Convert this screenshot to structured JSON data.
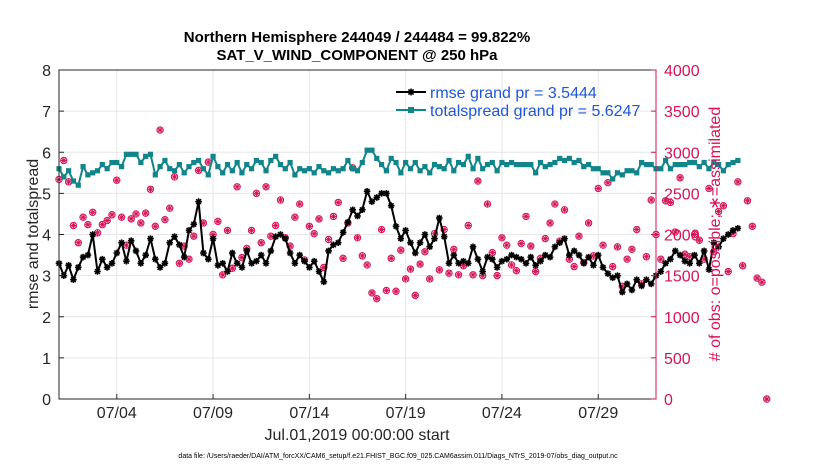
{
  "chart_data": {
    "type": "line",
    "title": "Northern Hemisphere 244049 / 244484 = 99.822%",
    "subtitle": "SAT_V_WIND_COMPONENT @ 250 hPa",
    "xlabel": "Jul.01,2019 00:00:00 start",
    "ylabel": "rmse and totalspread",
    "ylabel_right": "# of obs: o=possible; ∗=assimilated",
    "footer": "data file: /Users/raeder/DAI/ATM_forcXX/CAM6_setup/f.e21.FHIST_BGC.f09_025.CAM6assim.011/Diags_NTrS_2019-07/obs_diag_output.nc",
    "x_range_days": [
      1,
      32
    ],
    "ylim": [
      0,
      8
    ],
    "ylim_right": [
      0,
      4000
    ],
    "x_ticks": [
      {
        "day": 4,
        "label": "07/04"
      },
      {
        "day": 9,
        "label": "07/09"
      },
      {
        "day": 14,
        "label": "07/14"
      },
      {
        "day": 19,
        "label": "07/19"
      },
      {
        "day": 24,
        "label": "07/24"
      },
      {
        "day": 29,
        "label": "07/29"
      }
    ],
    "y_ticks": [
      0,
      1,
      2,
      3,
      4,
      5,
      6,
      7,
      8
    ],
    "y_ticks_right": [
      0,
      500,
      1000,
      1500,
      2000,
      2500,
      3000,
      3500,
      4000
    ],
    "legend_position": "top-right",
    "grid": true,
    "x_start_day": 1.0,
    "x_step_days": 0.25,
    "series": [
      {
        "name": "rmse grand pr = 3.5444",
        "color": "#000000",
        "marker": "star",
        "values": [
          3.3,
          3.0,
          3.25,
          2.9,
          3.2,
          3.45,
          3.5,
          4.0,
          3.1,
          3.4,
          3.2,
          3.3,
          3.55,
          3.8,
          3.35,
          3.85,
          3.6,
          3.3,
          3.5,
          3.9,
          3.4,
          3.2,
          3.3,
          3.8,
          3.95,
          3.75,
          3.45,
          4.1,
          4.25,
          4.8,
          3.55,
          3.4,
          3.9,
          3.25,
          3.3,
          3.1,
          3.55,
          3.3,
          3.2,
          3.6,
          3.3,
          3.35,
          3.5,
          3.3,
          3.6,
          3.95,
          4.0,
          3.9,
          3.55,
          3.3,
          3.5,
          3.35,
          3.2,
          3.35,
          3.1,
          2.85,
          3.6,
          3.75,
          3.8,
          4.05,
          4.3,
          4.6,
          4.45,
          4.6,
          5.05,
          4.8,
          4.9,
          5.0,
          5.0,
          4.7,
          4.2,
          3.9,
          4.1,
          3.8,
          3.55,
          3.8,
          4.0,
          3.7,
          3.9,
          4.4,
          3.95,
          3.3,
          3.5,
          3.3,
          3.35,
          3.3,
          3.7,
          3.4,
          3.1,
          3.45,
          3.4,
          3.2,
          3.35,
          3.4,
          3.5,
          3.45,
          3.4,
          3.3,
          3.45,
          3.25,
          3.35,
          3.5,
          3.45,
          3.7,
          3.8,
          3.9,
          3.5,
          3.6,
          3.5,
          3.3,
          3.45,
          3.25,
          3.5,
          3.2,
          3.05,
          2.95,
          3.0,
          2.6,
          2.8,
          2.65,
          2.9,
          2.75,
          2.9,
          2.8,
          3.0,
          3.1,
          3.3,
          3.4,
          3.6,
          3.5,
          3.35,
          3.3,
          3.5,
          3.3,
          3.6,
          3.15,
          3.8,
          3.7,
          3.9,
          4.0,
          4.1,
          4.15
        ]
      },
      {
        "name": "totalspread grand pr = 5.6247",
        "color": "#11858a",
        "marker": "square",
        "values": [
          5.6,
          5.4,
          5.55,
          5.3,
          5.2,
          5.65,
          5.45,
          5.5,
          5.55,
          5.7,
          5.6,
          5.75,
          5.75,
          5.65,
          5.95,
          5.95,
          5.95,
          5.75,
          5.9,
          5.95,
          5.45,
          5.65,
          5.8,
          5.6,
          5.55,
          5.7,
          5.5,
          5.65,
          5.75,
          5.8,
          5.6,
          5.45,
          5.9,
          5.65,
          5.5,
          5.7,
          5.55,
          5.75,
          5.5,
          5.7,
          5.6,
          5.8,
          5.75,
          5.55,
          5.8,
          5.9,
          5.7,
          5.6,
          5.75,
          5.45,
          5.6,
          5.55,
          5.6,
          5.5,
          5.65,
          5.55,
          5.5,
          5.6,
          5.55,
          5.6,
          5.8,
          5.6,
          5.55,
          5.75,
          6.05,
          6.05,
          5.85,
          5.7,
          5.55,
          5.85,
          5.75,
          5.5,
          5.75,
          5.6,
          5.75,
          5.55,
          5.65,
          5.5,
          5.7,
          5.65,
          5.6,
          5.8,
          5.55,
          5.75,
          5.7,
          5.9,
          5.6,
          5.85,
          5.6,
          5.7,
          5.75,
          5.55,
          5.75,
          5.7,
          5.75,
          5.7,
          5.7,
          5.7,
          5.7,
          5.5,
          5.75,
          5.65,
          5.7,
          5.75,
          5.85,
          5.8,
          5.85,
          5.75,
          5.8,
          5.65,
          5.7,
          5.6,
          5.6,
          5.5,
          5.5,
          5.35,
          5.5,
          5.45,
          5.55,
          5.55,
          5.5,
          5.75,
          5.7,
          5.7,
          5.6,
          5.6,
          5.8,
          5.6,
          5.7,
          5.7,
          5.7,
          5.75,
          5.75,
          5.65,
          5.75,
          5.6,
          5.75,
          5.7,
          5.55,
          5.7,
          5.75,
          5.8
        ]
      }
    ],
    "obs_possible": [
      2670,
      2900,
      2640,
      2110,
      1900,
      2210,
      2120,
      2270,
      2020,
      2120,
      2170,
      2240,
      2660,
      2210,
      1870,
      2190,
      2250,
      2140,
      2260,
      2550,
      2100,
      3270,
      2180,
      2320,
      2700,
      1650,
      1860,
      1700,
      1980,
      2780,
      2140,
      2880,
      2000,
      2160,
      1510,
      2050,
      1590,
      2580,
      1720,
      1830,
      2050,
      2500,
      1900,
      2580,
      1980,
      2110,
      2420,
      1960,
      1860,
      2210,
      2370,
      1690,
      2100,
      2010,
      2190,
      1600,
      1940,
      2220,
      2390,
      1710,
      2140,
      2810,
      1960,
      1740,
      1630,
      1290,
      1220,
      2060,
      1320,
      1710,
      1310,
      1810,
      1460,
      1580,
      1260,
      1640,
      1790,
      1460,
      2010,
      1570,
      2060,
      1530,
      1820,
      1510,
      1620,
      2110,
      1510,
      2650,
      1500,
      2370,
      1780,
      1500,
      1960,
      1870,
      1630,
      1560,
      1890,
      2220,
      1860,
      1550,
      1710,
      1950,
      2140,
      2370,
      1920,
      2300,
      1700,
      1610,
      1980,
      1660,
      2140,
      1740,
      2560,
      1870,
      2630,
      1610,
      1850,
      1370,
      1700,
      1820,
      2060,
      1400,
      1730,
      2420,
      2000,
      1700,
      2410,
      2390,
      2030,
      2690,
      1760,
      1730,
      2000,
      1930,
      1700,
      2560,
      1790,
      2280,
      2350,
      1550,
      2010,
      2640,
      1620,
      2410,
      2100,
      1470,
      1420,
      0
    ],
    "obs_assimilated": [
      2670,
      2900,
      2640,
      2110,
      1900,
      2210,
      2120,
      2270,
      2020,
      2120,
      2170,
      2240,
      2660,
      2210,
      1870,
      2190,
      2250,
      2140,
      2260,
      2550,
      2100,
      3270,
      2180,
      2320,
      2700,
      1650,
      1860,
      1700,
      1980,
      2780,
      2140,
      2880,
      2000,
      2160,
      1510,
      2050,
      1590,
      2580,
      1720,
      1830,
      2050,
      2500,
      1900,
      2580,
      1980,
      2110,
      2420,
      1960,
      1860,
      2210,
      2370,
      1690,
      2100,
      2010,
      2190,
      1600,
      1940,
      2220,
      2390,
      1710,
      2140,
      2810,
      1960,
      1740,
      1630,
      1290,
      1220,
      2060,
      1320,
      1710,
      1310,
      1810,
      1460,
      1580,
      1260,
      1640,
      1790,
      1460,
      2010,
      1570,
      2060,
      1530,
      1820,
      1510,
      1620,
      2110,
      1510,
      2650,
      1500,
      2370,
      1780,
      1500,
      1960,
      1870,
      1630,
      1560,
      1890,
      2220,
      1860,
      1550,
      1710,
      1950,
      2140,
      2370,
      1920,
      2300,
      1700,
      1610,
      1980,
      1660,
      2140,
      1740,
      2560,
      1870,
      2630,
      1610,
      1850,
      1370,
      1700,
      1820,
      2060,
      1400,
      1730,
      2420,
      2000,
      1700,
      2410,
      2390,
      2030,
      2690,
      1760,
      1730,
      2000,
      1930,
      1700,
      2560,
      1790,
      2280,
      2350,
      1550,
      2010,
      2640,
      1620,
      2410,
      2100,
      1470,
      1420,
      0
    ],
    "obs_color": "#d6135a"
  }
}
